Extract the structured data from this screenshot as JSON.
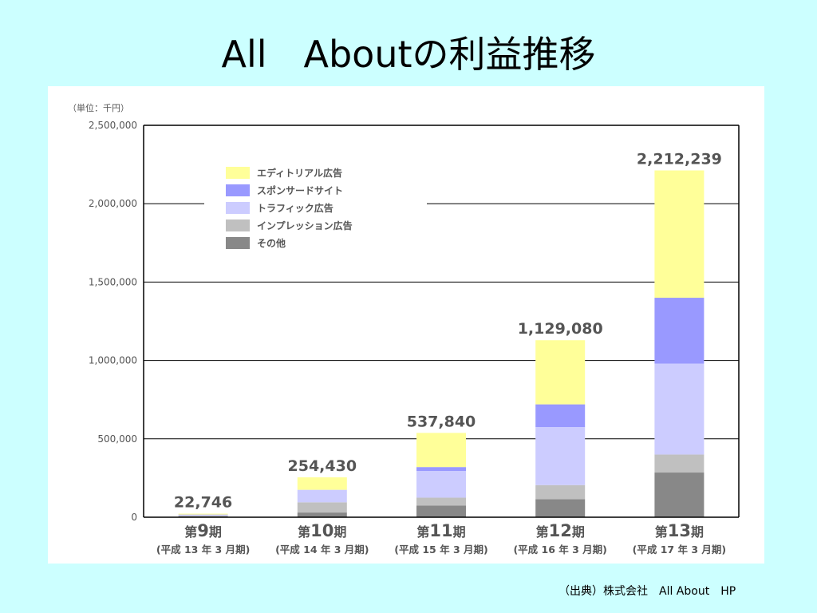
{
  "title": "All　Aboutの利益推移",
  "source": "（出典）株式会社　All About　HP",
  "chart_data": {
    "type": "bar",
    "stacked": true,
    "unit_label": "（単位：千円）",
    "ylim": [
      0,
      2500000
    ],
    "yticks": [
      "0",
      "500,000",
      "1,000,000",
      "1,500,000",
      "2,000,000",
      "2,500,000"
    ],
    "ytick_values": [
      0,
      500000,
      1000000,
      1500000,
      2000000,
      2500000
    ],
    "grid": true,
    "legend_position": "top-left",
    "categories": [
      "第9期",
      "第10期",
      "第11期",
      "第12期",
      "第13期"
    ],
    "category_main": [
      {
        "prefix": "第",
        "num": "9",
        "suffix": "期"
      },
      {
        "prefix": "第",
        "num": "10",
        "suffix": "期"
      },
      {
        "prefix": "第",
        "num": "11",
        "suffix": "期"
      },
      {
        "prefix": "第",
        "num": "12",
        "suffix": "期"
      },
      {
        "prefix": "第",
        "num": "13",
        "suffix": "期"
      }
    ],
    "category_sub": [
      "(平成 13 年 3 月期)",
      "(平成 14 年 3 月期)",
      "(平成 15 年 3 月期)",
      "(平成 16 年 3 月期)",
      "(平成 17 年 3 月期)"
    ],
    "totals": [
      22746,
      254430,
      537840,
      1129080,
      2212239
    ],
    "total_labels": [
      "22,746",
      "254,430",
      "537,840",
      "1,129,080",
      "2,212,239"
    ],
    "series": [
      {
        "name": "その他",
        "color": "#888888",
        "values": [
          5000,
          30000,
          75000,
          115000,
          285000
        ]
      },
      {
        "name": "インプレッション広告",
        "color": "#c0c0c0",
        "values": [
          5000,
          65000,
          50000,
          90000,
          115000
        ]
      },
      {
        "name": "トラフィック広告",
        "color": "#ccccff",
        "values": [
          5000,
          80000,
          170000,
          370000,
          580000
        ]
      },
      {
        "name": "スポンサードサイト",
        "color": "#9999ff",
        "values": [
          2000,
          0,
          25000,
          145000,
          420000
        ]
      },
      {
        "name": "エディトリアル広告",
        "color": "#ffff99",
        "values": [
          5746,
          79430,
          217840,
          409080,
          812239
        ]
      }
    ],
    "legend_order": [
      {
        "name": "エディトリアル広告",
        "color": "#ffff99"
      },
      {
        "name": "スポンサードサイト",
        "color": "#9999ff"
      },
      {
        "name": "トラフィック広告",
        "color": "#ccccff"
      },
      {
        "name": "インプレッション広告",
        "color": "#c0c0c0"
      },
      {
        "name": "その他",
        "color": "#888888"
      }
    ]
  }
}
